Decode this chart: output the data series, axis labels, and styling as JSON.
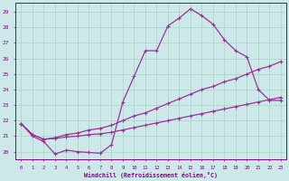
{
  "xlabel": "Windchill (Refroidissement éolien,°C)",
  "bg_color": "#cce8e8",
  "grid_color": "#99ccbb",
  "line_color": "#993399",
  "x_ticks": [
    0,
    1,
    2,
    3,
    4,
    5,
    6,
    7,
    8,
    9,
    10,
    11,
    12,
    13,
    14,
    15,
    16,
    17,
    18,
    19,
    20,
    21,
    22,
    23
  ],
  "y_ticks": [
    20,
    21,
    22,
    23,
    24,
    25,
    26,
    27,
    28,
    29
  ],
  "xlim": [
    -0.5,
    23.5
  ],
  "ylim": [
    19.5,
    29.6
  ],
  "curve1_x": [
    0,
    1,
    2,
    3,
    4,
    5,
    6,
    7,
    8,
    9,
    10,
    11,
    12,
    13,
    14,
    15,
    16,
    17,
    18,
    19,
    20,
    21,
    22,
    23
  ],
  "curve1_y": [
    21.8,
    21.0,
    20.65,
    19.85,
    20.1,
    20.0,
    19.95,
    19.9,
    20.45,
    23.2,
    24.85,
    26.5,
    26.5,
    28.1,
    28.6,
    29.2,
    28.75,
    28.2,
    27.2,
    26.5,
    26.1,
    24.0,
    23.3,
    23.3
  ],
  "curve2_x": [
    0,
    1,
    2,
    3,
    4,
    5,
    6,
    7,
    8,
    9,
    10,
    11,
    12,
    13,
    14,
    15,
    16,
    17,
    18,
    19,
    20,
    21,
    22,
    23
  ],
  "curve2_y": [
    21.8,
    21.1,
    20.8,
    20.9,
    21.1,
    21.2,
    21.4,
    21.5,
    21.7,
    22.0,
    22.3,
    22.5,
    22.8,
    23.1,
    23.4,
    23.7,
    24.0,
    24.2,
    24.5,
    24.7,
    25.0,
    25.3,
    25.5,
    25.8
  ],
  "curve3_x": [
    0,
    1,
    2,
    3,
    4,
    5,
    6,
    7,
    8,
    9,
    10,
    11,
    12,
    13,
    14,
    15,
    16,
    17,
    18,
    19,
    20,
    21,
    22,
    23
  ],
  "curve3_y": [
    21.8,
    21.1,
    20.8,
    20.85,
    20.95,
    21.0,
    21.1,
    21.15,
    21.25,
    21.4,
    21.55,
    21.7,
    21.85,
    22.0,
    22.15,
    22.3,
    22.45,
    22.6,
    22.75,
    22.9,
    23.05,
    23.2,
    23.35,
    23.5
  ]
}
